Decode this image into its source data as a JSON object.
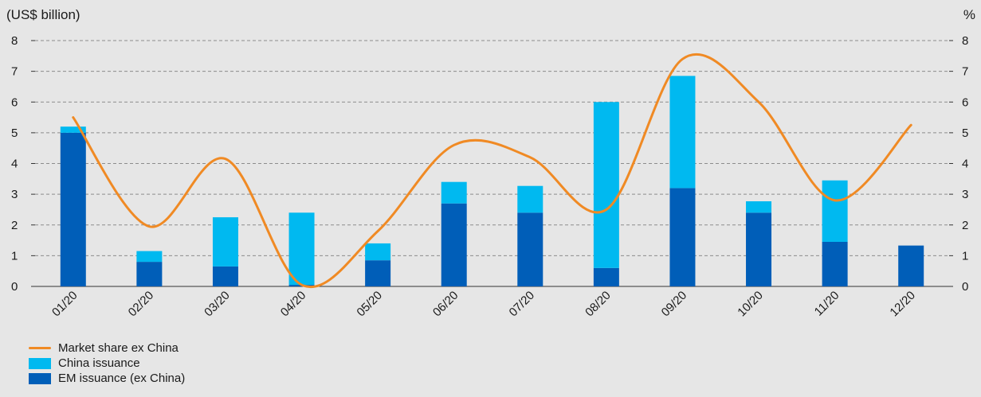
{
  "chart_data": {
    "type": "bar",
    "stacked": true,
    "ylabel": "(US$ billion)",
    "y2label": "%",
    "ylim": [
      0,
      8
    ],
    "y2lim": [
      0,
      8
    ],
    "yticks": [
      "0",
      "1",
      "2",
      "3",
      "4",
      "5",
      "6",
      "7",
      "8"
    ],
    "y2ticks": [
      "0",
      "1",
      "2",
      "3",
      "4",
      "5",
      "6",
      "7",
      "8"
    ],
    "grid": true,
    "legend_position": "bottom-left",
    "categories": [
      "01/20",
      "02/20",
      "03/20",
      "04/20",
      "05/20",
      "06/20",
      "07/20",
      "08/20",
      "09/20",
      "10/20",
      "11/20",
      "12/20"
    ],
    "series": [
      {
        "name": "EM issuance (ex China)",
        "type": "bar",
        "color": "#005eb8",
        "values": [
          5.0,
          0.8,
          0.65,
          0.05,
          0.85,
          2.7,
          2.4,
          0.6,
          3.2,
          2.4,
          1.45,
          1.33
        ]
      },
      {
        "name": "China issuance",
        "type": "bar",
        "color": "#00b9f0",
        "values": [
          0.2,
          0.35,
          1.6,
          2.35,
          0.55,
          0.7,
          0.87,
          5.4,
          3.65,
          0.37,
          2.0,
          0
        ]
      },
      {
        "name": "Market share ex China",
        "type": "line",
        "axis": "right",
        "color": "#f08a24",
        "values": [
          5.5,
          1.95,
          4.15,
          0.05,
          1.8,
          4.6,
          4.2,
          2.5,
          7.4,
          6.0,
          2.8,
          5.25
        ]
      }
    ]
  },
  "legend": {
    "items": [
      {
        "label": "Market share ex China",
        "kind": "line",
        "color": "#f08a24"
      },
      {
        "label": "China issuance",
        "kind": "box",
        "color": "#00b9f0"
      },
      {
        "label": "EM issuance (ex China)",
        "kind": "box",
        "color": "#005eb8"
      }
    ]
  }
}
